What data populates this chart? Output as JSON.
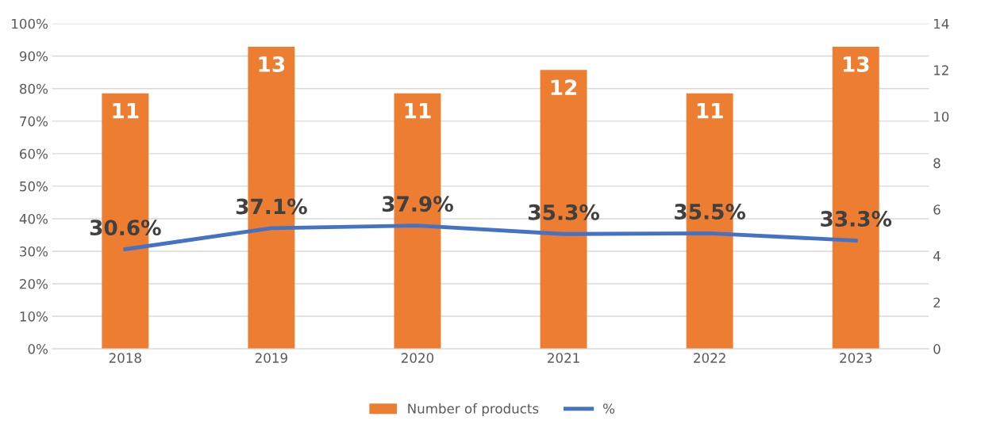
{
  "chart_data": {
    "type": "bar",
    "categories": [
      "2018",
      "2019",
      "2020",
      "2021",
      "2022",
      "2023"
    ],
    "series": [
      {
        "name": "Number of products",
        "axis": "y2",
        "color": "#ed7d31",
        "values": [
          11,
          13,
          11,
          12,
          11,
          13
        ],
        "value_labels": [
          "11",
          "13",
          "11",
          "12",
          "11",
          "13"
        ]
      },
      {
        "name": "%",
        "type": "line",
        "color": "#4472c4",
        "values": [
          30.6,
          37.1,
          37.9,
          35.3,
          35.5,
          33.3
        ],
        "value_labels": [
          "30.6%",
          "37.1%",
          "37.9%",
          "35.3%",
          "35.5%",
          "33.3%"
        ]
      }
    ],
    "ylim": [
      0,
      100
    ],
    "yticks": [
      {
        "value": 0,
        "label": "0%"
      },
      {
        "value": 10,
        "label": "10%"
      },
      {
        "value": 20,
        "label": "20%"
      },
      {
        "value": 30,
        "label": "30%"
      },
      {
        "value": 40,
        "label": "40%"
      },
      {
        "value": 50,
        "label": "50%"
      },
      {
        "value": 60,
        "label": "60%"
      },
      {
        "value": 70,
        "label": "70%"
      },
      {
        "value": 80,
        "label": "80%"
      },
      {
        "value": 90,
        "label": "90%"
      },
      {
        "value": 100,
        "label": "100%"
      }
    ],
    "y2lim": [
      0,
      14
    ],
    "y2ticks": [
      0,
      2,
      4,
      6,
      8,
      10,
      12,
      14
    ],
    "grid": "y",
    "legend": "bottom",
    "marker": "none",
    "line_style": "solid"
  }
}
